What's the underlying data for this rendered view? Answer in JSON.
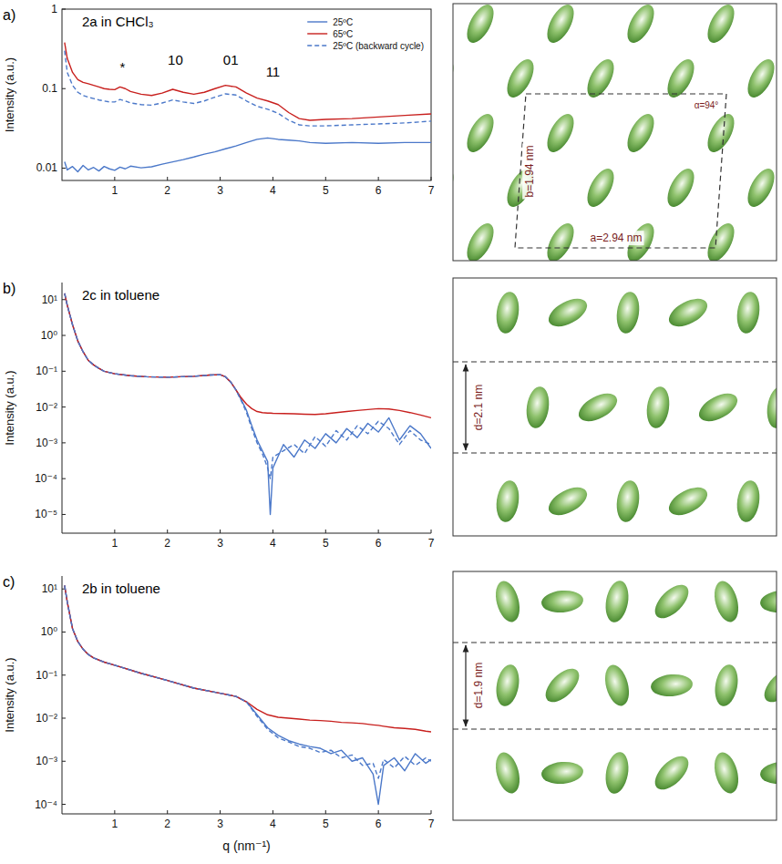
{
  "chart_data": [
    {
      "type": "line",
      "panel_label": "a)",
      "title": "2a in CHCl₃",
      "y_label": "Intensity (a.u.)",
      "log": "y",
      "legend": "top-right",
      "x": [
        0.05,
        0.1,
        0.2,
        0.3,
        0.4,
        0.5,
        0.6,
        0.7,
        0.8,
        0.9,
        1.0,
        1.1,
        1.2,
        1.3,
        1.5,
        1.7,
        1.9,
        2.1,
        2.3,
        2.5,
        2.7,
        2.9,
        3.1,
        3.3,
        3.5,
        3.7,
        3.9,
        4.1,
        4.3,
        4.5,
        4.7,
        5.0,
        5.5,
        6.0,
        6.5,
        7.0
      ],
      "series": [
        {
          "name": "25ºC",
          "color": "#4b78c9",
          "line_style": "solid",
          "values": [
            0.012,
            0.0095,
            0.0105,
            0.009,
            0.0108,
            0.0095,
            0.0102,
            0.0092,
            0.0105,
            0.0098,
            0.0094,
            0.0103,
            0.0098,
            0.0106,
            0.0101,
            0.0104,
            0.0112,
            0.012,
            0.0128,
            0.0138,
            0.015,
            0.016,
            0.0175,
            0.019,
            0.021,
            0.023,
            0.024,
            0.023,
            0.0225,
            0.022,
            0.021,
            0.0205,
            0.021,
            0.0205,
            0.021,
            0.021
          ]
        },
        {
          "name": "65ºC",
          "color": "#c8201e",
          "line_style": "solid",
          "values": [
            0.38,
            0.24,
            0.16,
            0.13,
            0.12,
            0.115,
            0.11,
            0.105,
            0.1,
            0.098,
            0.097,
            0.105,
            0.1,
            0.092,
            0.085,
            0.082,
            0.088,
            0.098,
            0.09,
            0.085,
            0.09,
            0.1,
            0.11,
            0.105,
            0.088,
            0.076,
            0.07,
            0.063,
            0.05,
            0.042,
            0.04,
            0.041,
            0.042,
            0.044,
            0.046,
            0.048
          ]
        },
        {
          "name": "25ºC (backward cycle)",
          "color": "#4b78c9",
          "line_style": "dashed",
          "values": [
            0.3,
            0.16,
            0.11,
            0.09,
            0.082,
            0.078,
            0.075,
            0.072,
            0.07,
            0.068,
            0.068,
            0.073,
            0.07,
            0.066,
            0.063,
            0.062,
            0.066,
            0.072,
            0.068,
            0.065,
            0.07,
            0.078,
            0.086,
            0.083,
            0.07,
            0.06,
            0.055,
            0.049,
            0.04,
            0.035,
            0.034,
            0.034,
            0.035,
            0.036,
            0.037,
            0.039
          ]
        }
      ],
      "xlim": [
        0,
        7
      ],
      "xticks": [
        1,
        2,
        3,
        4,
        5,
        6,
        7
      ],
      "ylim": [
        0.007,
        1
      ],
      "yticks": [
        0.01,
        0.1,
        1
      ],
      "annotations": [
        {
          "text": "*",
          "x": 1.15,
          "y": 0.16
        },
        {
          "text": "10",
          "x": 2.15,
          "y": 0.2
        },
        {
          "text": "01",
          "x": 3.2,
          "y": 0.2
        },
        {
          "text": "11",
          "x": 4.0,
          "y": 0.14
        }
      ]
    },
    {
      "type": "line",
      "panel_label": "b)",
      "title": "2c in toluene",
      "y_label": "Intensity (a.u.)",
      "log": "y",
      "x": [
        0.05,
        0.1,
        0.2,
        0.3,
        0.4,
        0.5,
        0.6,
        0.7,
        0.8,
        1.0,
        1.3,
        1.6,
        2.0,
        2.5,
        2.8,
        3.0,
        3.1,
        3.2,
        3.3,
        3.4,
        3.5,
        3.6,
        3.7,
        3.8,
        3.9,
        3.95,
        4.0,
        4.2,
        4.4,
        4.6,
        4.8,
        5.0,
        5.2,
        5.4,
        5.6,
        5.8,
        6.0,
        6.2,
        6.4,
        6.6,
        6.8,
        7.0
      ],
      "series": [
        {
          "color": "#4b78c9",
          "line_style": "solid",
          "values": [
            15,
            7,
            2,
            0.7,
            0.35,
            0.2,
            0.15,
            0.12,
            0.1,
            0.085,
            0.075,
            0.07,
            0.068,
            0.072,
            0.078,
            0.08,
            0.07,
            0.05,
            0.03,
            0.016,
            0.008,
            0.003,
            0.0012,
            0.0006,
            0.0003,
            1e-05,
            0.0002,
            0.0009,
            0.0004,
            0.0012,
            0.0007,
            0.0018,
            0.001,
            0.0025,
            0.0014,
            0.0035,
            0.002,
            0.005,
            0.0012,
            0.003,
            0.0018,
            0.0007
          ]
        },
        {
          "color": "#c8201e",
          "line_style": "solid",
          "values": [
            15,
            7,
            2,
            0.7,
            0.35,
            0.2,
            0.15,
            0.12,
            0.1,
            0.085,
            0.075,
            0.07,
            0.068,
            0.072,
            0.078,
            0.08,
            0.07,
            0.05,
            0.03,
            0.018,
            0.012,
            0.009,
            0.0075,
            0.007,
            0.0068,
            0.0068,
            0.0067,
            0.0066,
            0.0065,
            0.0063,
            0.0062,
            0.0065,
            0.007,
            0.0075,
            0.008,
            0.0085,
            0.009,
            0.0088,
            0.008,
            0.007,
            0.006,
            0.005
          ]
        },
        {
          "color": "#4b78c9",
          "line_style": "dashed",
          "values": [
            15,
            7,
            2,
            0.7,
            0.35,
            0.2,
            0.15,
            0.12,
            0.1,
            0.085,
            0.075,
            0.07,
            0.068,
            0.072,
            0.078,
            0.08,
            0.07,
            0.05,
            0.03,
            0.015,
            0.007,
            0.0025,
            0.001,
            0.0005,
            0.0002,
            0.0001,
            0.0004,
            0.0006,
            0.0009,
            0.0005,
            0.0015,
            0.0008,
            0.0022,
            0.0012,
            0.003,
            0.0018,
            0.004,
            0.0025,
            0.0009,
            0.0022,
            0.0012,
            0.0009
          ]
        }
      ],
      "xlim": [
        0,
        7
      ],
      "xticks": [
        1,
        2,
        3,
        4,
        5,
        6,
        7
      ],
      "ylim": [
        3e-06,
        30
      ],
      "yticks": [
        {
          "value": 10,
          "label": "10¹"
        },
        {
          "value": 1,
          "label": "10⁰"
        },
        {
          "value": 0.1,
          "label": "10⁻¹"
        },
        {
          "value": 0.01,
          "label": "10⁻²"
        },
        {
          "value": 0.001,
          "label": "10⁻³"
        },
        {
          "value": 0.0001,
          "label": "10⁻⁴"
        },
        {
          "value": 1e-05,
          "label": "10⁻⁵"
        }
      ]
    },
    {
      "type": "line",
      "panel_label": "c)",
      "title": "2b in toluene",
      "y_label": "Intensity (a.u.)",
      "x_label": "q (nm⁻¹)",
      "log": "y",
      "x": [
        0.05,
        0.1,
        0.2,
        0.3,
        0.4,
        0.5,
        0.6,
        0.8,
        1.0,
        1.5,
        2.0,
        2.5,
        3.0,
        3.3,
        3.5,
        3.7,
        3.9,
        4.1,
        4.3,
        4.5,
        4.7,
        4.9,
        5.1,
        5.3,
        5.5,
        5.7,
        5.9,
        6.0,
        6.1,
        6.3,
        6.5,
        6.7,
        6.9,
        7.0
      ],
      "series": [
        {
          "color": "#4b78c9",
          "line_style": "solid",
          "values": [
            12,
            5,
            1.2,
            0.6,
            0.4,
            0.3,
            0.25,
            0.2,
            0.17,
            0.11,
            0.075,
            0.05,
            0.038,
            0.032,
            0.024,
            0.012,
            0.006,
            0.004,
            0.003,
            0.0025,
            0.0022,
            0.002,
            0.0015,
            0.0018,
            0.001,
            0.0012,
            0.0005,
            0.0001,
            0.0008,
            0.0012,
            0.0006,
            0.0015,
            0.0009,
            0.0011
          ]
        },
        {
          "color": "#c8201e",
          "line_style": "solid",
          "values": [
            12,
            5,
            1.2,
            0.6,
            0.4,
            0.3,
            0.25,
            0.2,
            0.17,
            0.11,
            0.075,
            0.05,
            0.038,
            0.032,
            0.024,
            0.016,
            0.012,
            0.0105,
            0.01,
            0.0095,
            0.009,
            0.0088,
            0.0085,
            0.008,
            0.0078,
            0.0075,
            0.007,
            0.0068,
            0.0065,
            0.006,
            0.0058,
            0.0055,
            0.005,
            0.0048
          ]
        },
        {
          "color": "#4b78c9",
          "line_style": "dashed",
          "values": [
            12,
            5,
            1.2,
            0.6,
            0.4,
            0.3,
            0.25,
            0.2,
            0.17,
            0.11,
            0.075,
            0.05,
            0.038,
            0.032,
            0.024,
            0.011,
            0.0055,
            0.0035,
            0.0028,
            0.0022,
            0.002,
            0.0016,
            0.0018,
            0.0012,
            0.0014,
            0.0008,
            0.0009,
            0.0004,
            0.0011,
            0.0007,
            0.0013,
            0.0008,
            0.0012,
            0.001
          ]
        }
      ],
      "xlim": [
        0,
        7
      ],
      "xticks": [
        1,
        2,
        3,
        4,
        5,
        6,
        7
      ],
      "ylim": [
        6e-05,
        20
      ],
      "yticks": [
        {
          "value": 10,
          "label": "10¹"
        },
        {
          "value": 1,
          "label": "10⁰"
        },
        {
          "value": 0.1,
          "label": "10⁻¹"
        },
        {
          "value": 0.01,
          "label": "10⁻²"
        },
        {
          "value": 0.001,
          "label": "10⁻³"
        },
        {
          "value": 0.0001,
          "label": "10⁻⁴"
        }
      ]
    }
  ],
  "diagrams": [
    {
      "b_label": "b=1.94 nm",
      "a_label": "a=2.94 nm",
      "angle_label": "α=94°"
    },
    {
      "d_label": "d=2.1 nm"
    },
    {
      "d_label": "d=1.9 nm"
    }
  ]
}
